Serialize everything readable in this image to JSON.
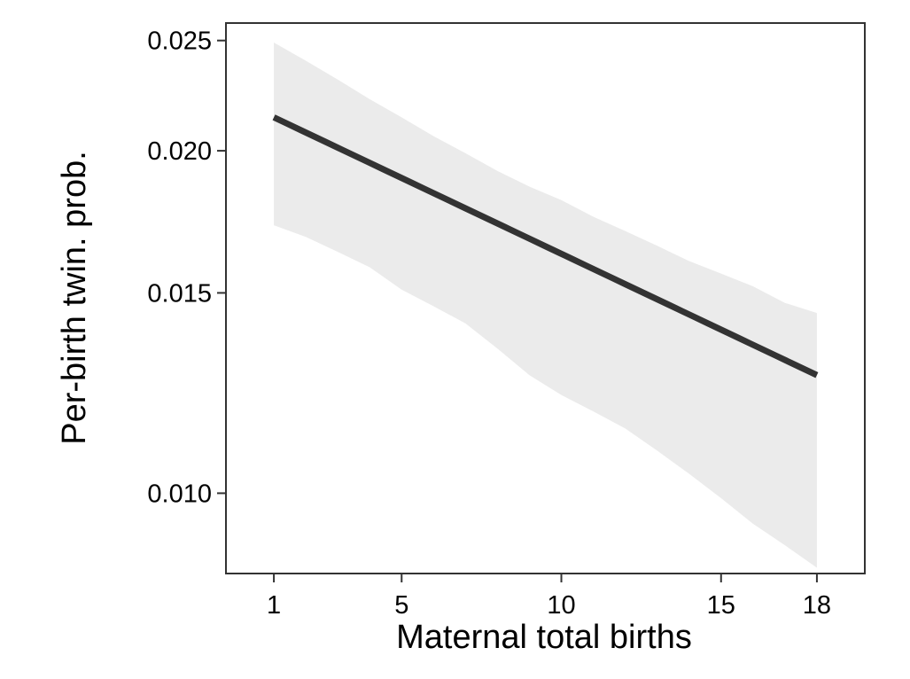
{
  "chart_data": {
    "type": "line",
    "title": "",
    "xlabel": "Maternal total births",
    "ylabel": "Per-birth twin. prob.",
    "x_scale": "linear",
    "y_scale": "log",
    "xlim": [
      -0.5,
      19.5
    ],
    "ylim": [
      0.0085,
      0.0259
    ],
    "x_ticks": [
      1,
      5,
      10,
      15,
      18
    ],
    "x_tick_labels": [
      "1",
      "5",
      "10",
      "15",
      "18"
    ],
    "y_ticks": [
      0.01,
      0.015,
      0.02,
      0.025
    ],
    "y_tick_labels": [
      "0.010",
      "0.015",
      "0.020",
      "0.025"
    ],
    "grid": false,
    "legend": "none",
    "series": [
      {
        "x": [
          1,
          18
        ],
        "y": [
          0.0214,
          0.0127
        ]
      }
    ],
    "confidence_band": {
      "x": [
        1,
        2,
        3,
        4,
        5,
        6,
        7,
        8,
        9,
        10,
        11,
        12,
        13,
        14,
        15,
        16,
        17,
        18
      ],
      "upper": [
        0.0249,
        0.024,
        0.0231,
        0.0222,
        0.0214,
        0.0206,
        0.0199,
        0.0192,
        0.0186,
        0.0181,
        0.0175,
        0.017,
        0.0165,
        0.016,
        0.0156,
        0.0152,
        0.0147,
        0.0144
      ],
      "lower": [
        0.0172,
        0.0168,
        0.0163,
        0.0158,
        0.0151,
        0.0146,
        0.0141,
        0.0134,
        0.0127,
        0.0122,
        0.0118,
        0.0114,
        0.0109,
        0.0104,
        0.0099,
        0.0094,
        0.009,
        0.0086
      ]
    },
    "colors": {
      "line": "#333333",
      "band": "#ebebeb",
      "panel_border": "#333333"
    }
  }
}
